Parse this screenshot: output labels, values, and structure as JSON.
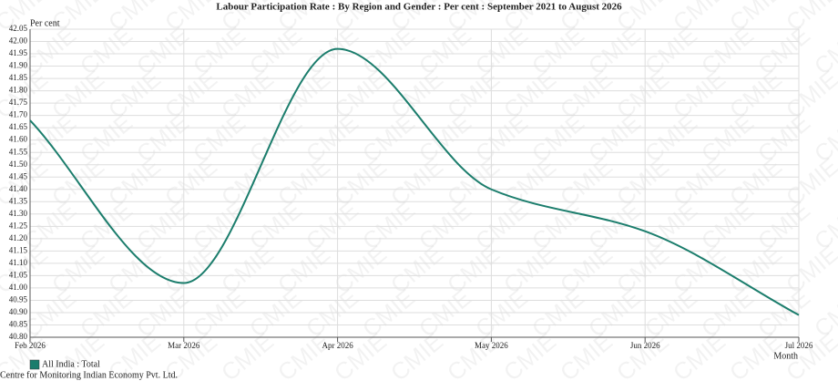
{
  "chart_data": {
    "type": "line",
    "title": "Labour Participation Rate : By Region and Gender : Per cent : September 2021 to August 2026",
    "y_label": "Per cent",
    "x_label": "Month",
    "watermark": "CMIE",
    "source": "Centre for Monitoring Indian Economy Pvt. Ltd.",
    "categories": [
      "Feb 2026",
      "Mar 2026",
      "Apr 2026",
      "May 2026",
      "Jun 2026",
      "Jul 2026"
    ],
    "series": [
      {
        "name": "All India : Total",
        "color": "#1b7d6c",
        "values": [
          41.68,
          41.02,
          41.97,
          41.4,
          41.23,
          40.89
        ]
      }
    ],
    "ylim": [
      40.8,
      42.05
    ],
    "yticks": [
      {
        "value": 40.8,
        "label": "40.80"
      },
      40.85,
      {
        "value": 40.9,
        "label": "40.90"
      },
      40.95,
      {
        "value": 41.0,
        "label": "41.00"
      },
      41.05,
      {
        "value": 41.1,
        "label": "41.10"
      },
      41.15,
      {
        "value": 41.2,
        "label": "41.20"
      },
      41.25,
      {
        "value": 41.3,
        "label": "41.30"
      },
      41.35,
      {
        "value": 41.4,
        "label": "41.40"
      },
      41.45,
      {
        "value": 41.5,
        "label": "41.50"
      },
      41.55,
      {
        "value": 41.6,
        "label": "41.60"
      },
      41.65,
      {
        "value": 41.7,
        "label": "41.70"
      },
      41.75,
      {
        "value": 41.8,
        "label": "41.80"
      },
      41.85,
      {
        "value": 41.9,
        "label": "41.90"
      },
      41.95,
      {
        "value": 42.0,
        "label": "42.00"
      },
      42.05
    ],
    "grid": true
  }
}
